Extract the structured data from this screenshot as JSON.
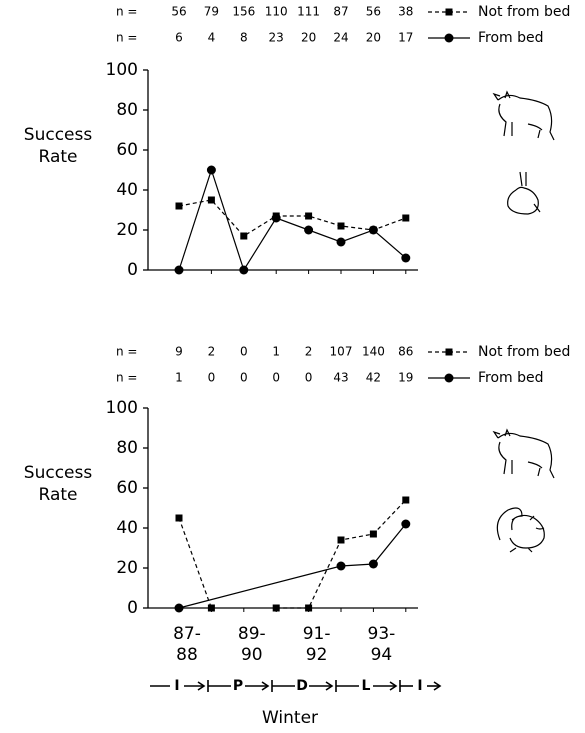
{
  "chart_data": [
    {
      "type": "line",
      "ylabel": "Success Rate",
      "n_label": "n =",
      "categories": [
        null,
        null,
        null,
        null,
        null,
        null,
        null,
        null
      ],
      "ylim": [
        0,
        100
      ],
      "yticks": [
        0,
        20,
        40,
        60,
        80,
        100
      ],
      "series": [
        {
          "name": "Not from bed",
          "color": "#000000",
          "marker": "square",
          "dashed": true,
          "n": [
            56,
            79,
            156,
            110,
            111,
            87,
            56,
            38
          ],
          "values": [
            32,
            35,
            17,
            27,
            27,
            22,
            20,
            26
          ]
        },
        {
          "name": "From bed",
          "color": "#000000",
          "marker": "circle",
          "dashed": false,
          "n": [
            6,
            4,
            8,
            23,
            20,
            24,
            20,
            17
          ],
          "values": [
            0,
            50,
            0,
            26,
            20,
            14,
            20,
            6
          ]
        }
      ]
    },
    {
      "type": "line",
      "ylabel": "Success Rate",
      "n_label": "n =",
      "xlabel": "Winter",
      "categories": [
        "87-\n88",
        null,
        "89-\n90",
        null,
        "91-\n92",
        null,
        "93-\n94",
        null
      ],
      "phases": [
        "I",
        "P",
        "D",
        "L",
        "I"
      ],
      "ylim": [
        0,
        100
      ],
      "yticks": [
        0,
        20,
        40,
        60,
        80,
        100
      ],
      "series": [
        {
          "name": "Not from bed",
          "color": "#000000",
          "marker": "square",
          "dashed": true,
          "n": [
            9,
            2,
            0,
            1,
            2,
            107,
            140,
            86
          ],
          "values": [
            45,
            0,
            null,
            0,
            0,
            34,
            37,
            54
          ]
        },
        {
          "name": "From bed",
          "color": "#000000",
          "marker": "circle",
          "dashed": false,
          "connect_gaps": true,
          "n": [
            1,
            0,
            0,
            0,
            0,
            43,
            42,
            19
          ],
          "values": [
            0,
            null,
            null,
            null,
            null,
            21,
            22,
            42
          ]
        }
      ]
    }
  ]
}
